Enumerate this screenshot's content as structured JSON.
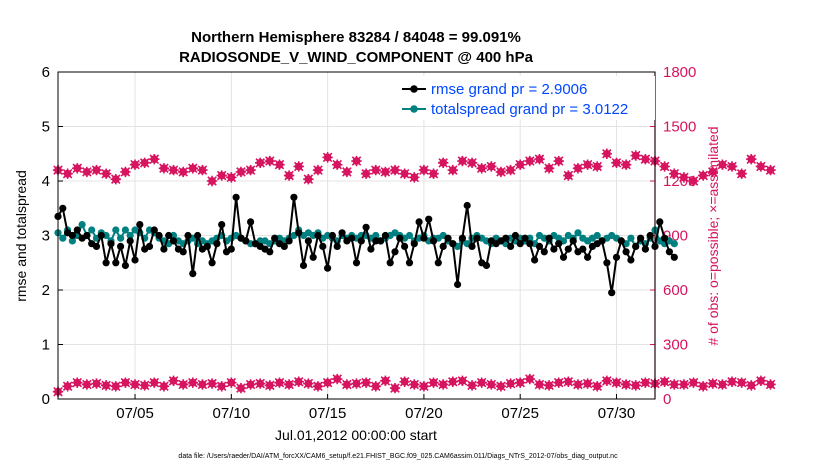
{
  "chart_data": {
    "type": "line",
    "title_line1": "Northern Hemisphere 83284 / 84048 = 99.091%",
    "title_line2": "RADIOSONDE_V_WIND_COMPONENT @ 400 hPa",
    "xlabel": "Jul.01,2012 00:00:00 start",
    "ylabel_left": "rmse and totalspread",
    "ylabel_right": "# of obs: o=possible; ×=assimilated",
    "xlim": [
      1,
      32
    ],
    "ylim_left": [
      0,
      6
    ],
    "ylim_right": [
      0,
      1800
    ],
    "x_tick_values": [
      5,
      10,
      15,
      20,
      25,
      30
    ],
    "x_tick_labels": [
      "07/05",
      "07/10",
      "07/15",
      "07/20",
      "07/25",
      "07/30"
    ],
    "y_left_ticks": [
      "0",
      "1",
      "2",
      "3",
      "4",
      "5",
      "6"
    ],
    "y_right_ticks": [
      "0",
      "300",
      "600",
      "900",
      "1200",
      "1500",
      "1800"
    ],
    "grid": true,
    "legend_position": "top-right",
    "colors": {
      "rmse": "#000000",
      "spread": "#008080",
      "obs": "#d6145f",
      "legend_text": "#0047ff"
    },
    "series": [
      {
        "name": "rmse grand pr = 2.9006",
        "axis": "left",
        "start": 1.0,
        "step": 0.25,
        "values": [
          3.35,
          3.5,
          3.05,
          3.0,
          3.1,
          2.95,
          3.0,
          2.85,
          2.8,
          3.0,
          2.5,
          2.85,
          2.5,
          2.8,
          2.45,
          2.9,
          2.55,
          3.2,
          2.75,
          2.8,
          3.1,
          3.0,
          2.75,
          3.0,
          2.9,
          2.75,
          2.7,
          3.0,
          2.3,
          3.0,
          2.75,
          2.8,
          2.5,
          2.85,
          3.2,
          2.7,
          2.75,
          3.7,
          2.95,
          2.9,
          3.25,
          2.85,
          2.8,
          2.75,
          2.7,
          2.95,
          2.85,
          2.8,
          2.9,
          3.7,
          3.05,
          2.45,
          2.9,
          2.6,
          3.0,
          2.8,
          2.4,
          3.0,
          2.8,
          3.05,
          2.9,
          2.95,
          2.5,
          2.9,
          3.15,
          2.75,
          2.9,
          2.9,
          3.0,
          2.5,
          2.7,
          2.95,
          2.8,
          2.5,
          2.85,
          3.25,
          2.95,
          3.3,
          2.9,
          2.5,
          2.8,
          2.95,
          2.85,
          2.1,
          2.95,
          3.55,
          2.8,
          2.95,
          2.5,
          2.45,
          2.9,
          2.85,
          2.9,
          2.95,
          2.8,
          3.0,
          2.85,
          2.95,
          2.85,
          2.55,
          2.8,
          2.7,
          2.95,
          2.75,
          2.85,
          2.6,
          2.75,
          2.9,
          2.7,
          2.75,
          2.6,
          2.8,
          2.85,
          2.9,
          2.5,
          1.95,
          2.6,
          2.9,
          2.7,
          2.55,
          2.8,
          2.95,
          2.75,
          3.0,
          2.8,
          3.25,
          2.95,
          2.7,
          2.6
        ]
      },
      {
        "name": "totalspread grand pr = 3.0122",
        "axis": "left",
        "start": 1.0,
        "step": 0.25,
        "values": [
          3.05,
          2.95,
          3.1,
          2.9,
          3.0,
          3.2,
          3.0,
          3.1,
          2.95,
          3.05,
          3.0,
          2.9,
          3.1,
          2.95,
          3.1,
          3.0,
          3.1,
          3.05,
          2.95,
          3.1,
          3.05,
          2.95,
          2.9,
          2.85,
          3.0,
          2.9,
          2.85,
          2.9,
          2.95,
          2.85,
          2.9,
          2.85,
          2.9,
          2.95,
          3.0,
          2.9,
          2.95,
          3.0,
          2.95,
          2.9,
          2.85,
          2.85,
          2.9,
          2.9,
          2.85,
          2.9,
          2.95,
          2.9,
          2.95,
          3.0,
          3.1,
          3.0,
          3.05,
          3.0,
          3.05,
          2.95,
          3.0,
          2.95,
          2.9,
          3.0,
          2.95,
          3.0,
          2.95,
          3.0,
          3.0,
          2.95,
          3.0,
          2.9,
          2.95,
          3.0,
          3.05,
          3.0,
          2.95,
          3.0,
          2.9,
          2.95,
          3.0,
          2.9,
          2.95,
          2.95,
          3.0,
          2.9,
          2.85,
          2.8,
          2.9,
          2.85,
          2.95,
          3.0,
          2.95,
          2.9,
          2.85,
          2.95,
          2.9,
          2.85,
          2.95,
          2.9,
          2.95,
          2.9,
          2.95,
          2.85,
          3.0,
          2.95,
          2.9,
          3.0,
          2.95,
          2.9,
          3.0,
          2.95,
          3.05,
          2.95,
          2.9,
          2.95,
          3.0,
          2.9,
          2.95,
          3.0,
          2.95,
          2.9,
          2.85,
          2.95,
          2.8,
          2.9,
          2.85,
          2.95,
          3.1,
          2.9,
          2.85,
          2.9,
          2.85
        ]
      },
      {
        "name": "# of obs possible",
        "axis": "right",
        "marker": "o",
        "start": 1.0,
        "step": 0.5,
        "values": [
          1260,
          1240,
          1270,
          1250,
          1260,
          1240,
          1210,
          1250,
          1290,
          1300,
          1320,
          1270,
          1260,
          1250,
          1270,
          1260,
          1200,
          1230,
          1220,
          1250,
          1260,
          1300,
          1310,
          1290,
          1230,
          1280,
          1210,
          1260,
          1330,
          1290,
          1250,
          1310,
          1240,
          1260,
          1250,
          1260,
          1240,
          1220,
          1260,
          1240,
          1300,
          1260,
          1310,
          1300,
          1270,
          1280,
          1250,
          1260,
          1290,
          1310,
          1320,
          1270,
          1310,
          1230,
          1270,
          1290,
          1280,
          1350,
          1300,
          1290,
          1340,
          1320,
          1310,
          1280,
          1240,
          1220,
          1200,
          1230,
          1250,
          1290,
          1280,
          1240,
          1320,
          1280,
          1260
        ]
      },
      {
        "name": "# of obs assimilated",
        "axis": "right",
        "marker": "x",
        "start": 1.0,
        "step": 0.5,
        "values": [
          40,
          70,
          90,
          80,
          85,
          75,
          70,
          90,
          80,
          75,
          90,
          70,
          100,
          80,
          90,
          80,
          85,
          70,
          90,
          60,
          80,
          85,
          75,
          90,
          80,
          95,
          85,
          70,
          90,
          110,
          80,
          85,
          90,
          70,
          100,
          60,
          95,
          80,
          70,
          90,
          80,
          95,
          100,
          75,
          90,
          80,
          70,
          85,
          90,
          110,
          80,
          75,
          90,
          95,
          80,
          85,
          70,
          100,
          90,
          80,
          75,
          90,
          85,
          95,
          80,
          80,
          90,
          70,
          85,
          80,
          95,
          90,
          75,
          100,
          80
        ]
      }
    ]
  },
  "footer": "data file: /Users/raeder/DAI/ATM_forcXX/CAM6_setup/f.e21.FHIST_BGC.f09_025.CAM6assim.011/Diags_NTrS_2012-07/obs_diag_output.nc"
}
